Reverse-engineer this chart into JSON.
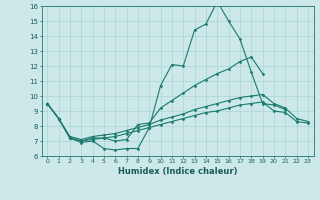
{
  "xlabel": "Humidex (Indice chaleur)",
  "bg_color": "#cce8e8",
  "line_color": "#1a7a6e",
  "grid_color": "#aad4d4",
  "xlim": [
    -0.5,
    23.5
  ],
  "ylim": [
    6,
    16
  ],
  "xticks": [
    0,
    1,
    2,
    3,
    4,
    5,
    6,
    7,
    8,
    9,
    10,
    11,
    12,
    13,
    14,
    15,
    16,
    17,
    18,
    19,
    20,
    21,
    22,
    23
  ],
  "yticks": [
    6,
    7,
    8,
    9,
    10,
    11,
    12,
    13,
    14,
    15,
    16
  ],
  "line1_x": [
    0,
    1,
    2,
    3,
    4,
    5,
    6,
    7,
    8,
    9,
    10,
    11,
    12,
    13,
    14,
    15,
    16,
    17,
    18,
    19,
    20,
    21
  ],
  "line1_y": [
    9.5,
    8.5,
    7.2,
    6.9,
    7.0,
    6.5,
    6.4,
    6.5,
    6.5,
    7.9,
    10.7,
    12.1,
    12.0,
    14.4,
    14.8,
    16.3,
    15.0,
    13.8,
    11.6,
    9.5,
    9.4,
    9.1
  ],
  "line2_x": [
    0,
    1,
    2,
    3,
    4,
    5,
    6,
    7,
    8,
    9,
    10,
    11,
    12,
    13,
    14,
    15,
    16,
    17,
    18,
    19
  ],
  "line2_y": [
    9.5,
    8.5,
    7.2,
    7.0,
    7.2,
    7.2,
    7.0,
    7.1,
    8.1,
    8.2,
    9.2,
    9.7,
    10.2,
    10.7,
    11.1,
    11.5,
    11.8,
    12.3,
    12.6,
    11.5
  ],
  "line3_x": [
    0,
    1,
    2,
    3,
    4,
    5,
    6,
    7,
    8,
    9,
    10,
    11,
    12,
    13,
    14,
    15,
    16,
    17,
    18,
    19,
    20,
    21,
    22,
    23
  ],
  "line3_y": [
    9.5,
    8.5,
    7.3,
    7.1,
    7.3,
    7.4,
    7.5,
    7.7,
    7.9,
    8.1,
    8.4,
    8.6,
    8.8,
    9.1,
    9.3,
    9.5,
    9.7,
    9.9,
    10.0,
    10.1,
    9.5,
    9.2,
    8.5,
    8.3
  ],
  "line4_x": [
    0,
    1,
    2,
    3,
    4,
    5,
    6,
    7,
    8,
    9,
    10,
    11,
    12,
    13,
    14,
    15,
    16,
    17,
    18,
    19,
    20,
    21,
    22,
    23
  ],
  "line4_y": [
    9.5,
    8.5,
    7.2,
    7.0,
    7.1,
    7.2,
    7.3,
    7.5,
    7.7,
    7.9,
    8.1,
    8.3,
    8.5,
    8.7,
    8.9,
    9.0,
    9.2,
    9.4,
    9.5,
    9.6,
    9.0,
    8.9,
    8.3,
    8.2
  ]
}
